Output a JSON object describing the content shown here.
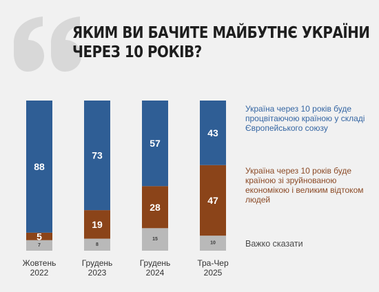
{
  "title_lines": [
    "ЯКИМ ВИ БАЧИТЕ МАЙБУТНЄ УКРАЇНИ",
    "ЧЕРЕЗ 10 РОКІВ?"
  ],
  "chart_data": {
    "type": "bar",
    "stacked": true,
    "title": "ЯКИМ ВИ БАЧИТЕ МАЙБУТНЄ УКРАЇНИ ЧЕРЕЗ 10 РОКІВ?",
    "categories": [
      [
        "Жовтень",
        "2022"
      ],
      [
        "Грудень",
        "2023"
      ],
      [
        "Грудень",
        "2024"
      ],
      [
        "Тра-Чер",
        "2025"
      ]
    ],
    "series": [
      {
        "name": "Важко сказати",
        "values": [
          7,
          8,
          15,
          10
        ],
        "color": "#b9b9b9",
        "label_color": "#3a3a3a"
      },
      {
        "name": "Україна через 10 років буде країною зі зруйнованою економікою і великим відтоком людей",
        "values": [
          5,
          19,
          28,
          47
        ],
        "color": "#8b4419",
        "label_color": "#ffffff"
      },
      {
        "name": "Україна через 10 років буде процвітаючою країною у складі Європейського союзу",
        "values": [
          88,
          73,
          57,
          43
        ],
        "color": "#2f5e95",
        "label_color": "#ffffff"
      }
    ],
    "legend": [
      {
        "text": "Україна через 10 років буде процвітаючою країною у складі Європейського союзу",
        "color": "#3566a3"
      },
      {
        "text": "Україна через 10 років буде країною зі зруйнованою економікою і великим відтоком людей",
        "color": "#8b4a26"
      },
      {
        "text": "Важко сказати",
        "color": "#4a4a4a"
      }
    ],
    "legend_position": "right",
    "grid": false
  }
}
